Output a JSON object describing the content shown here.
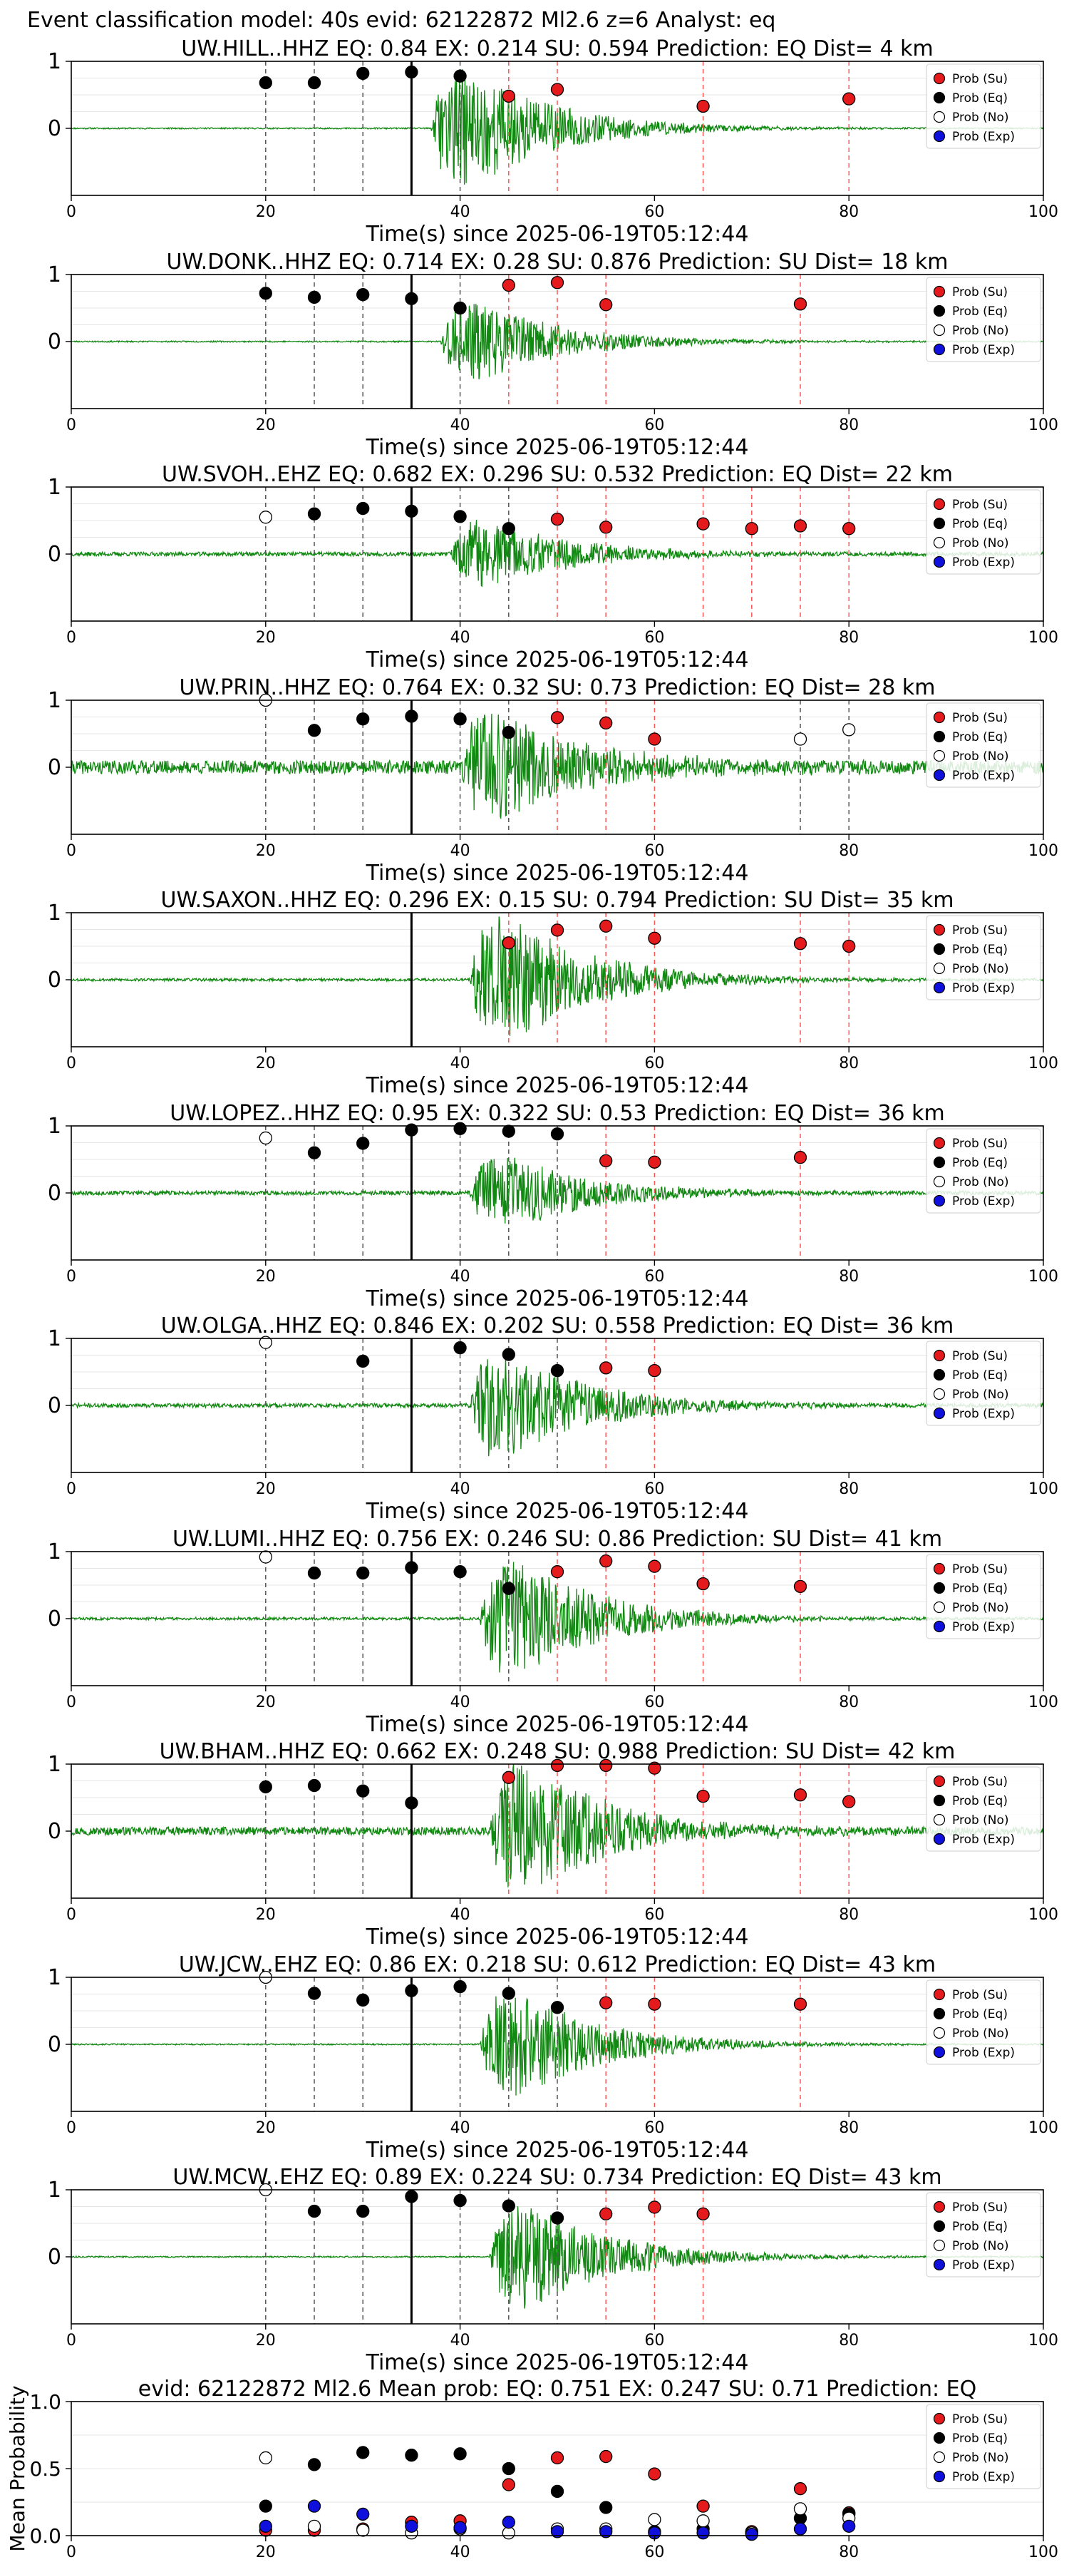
{
  "suptitle": "Event classification model: 40s evid: 62122872 Ml2.6 z=6 Analyst: eq",
  "xlabel": "Time(s) since 2025-06-19T05:12:44",
  "legend": [
    "Prob (Su)",
    "Prob (Eq)",
    "Prob (No)",
    "Prob (Exp)"
  ],
  "colors": {
    "su": "#e41a1c",
    "eq": "#000000",
    "no": "#ffffff",
    "exp": "#1010dd",
    "trace": "#118811"
  },
  "chart_data": [
    {
      "type": "scatter",
      "title": "UW.HILL..HHZ   EQ: 0.84  EX: 0.214  SU: 0.594   Prediction: EQ    Dist= 4 km",
      "xlim": [
        0,
        100
      ],
      "ylim": [
        -1,
        1
      ],
      "xticks": [
        0,
        20,
        40,
        60,
        80,
        100
      ],
      "yticks": [
        1,
        0
      ],
      "arrival": 35,
      "onset": 37,
      "amp": 0.9,
      "noise": 0.01,
      "seed": 11,
      "series": [
        {
          "name": "Prob (Su)",
          "x": [
            45,
            50,
            65,
            80
          ],
          "y": [
            0.48,
            0.58,
            0.33,
            0.44
          ]
        },
        {
          "name": "Prob (Eq)",
          "x": [
            20,
            25,
            30,
            35,
            40
          ],
          "y": [
            0.68,
            0.68,
            0.82,
            0.84,
            0.78
          ]
        }
      ]
    },
    {
      "type": "scatter",
      "title": "UW.DONK..HHZ   EQ: 0.714  EX: 0.28  SU: 0.876   Prediction: SU    Dist= 18 km",
      "xlim": [
        0,
        100
      ],
      "ylim": [
        -1,
        1
      ],
      "xticks": [
        0,
        20,
        40,
        60,
        80,
        100
      ],
      "yticks": [
        1,
        0
      ],
      "arrival": 35,
      "onset": 38,
      "amp": 0.6,
      "noise": 0.01,
      "seed": 23,
      "series": [
        {
          "name": "Prob (Su)",
          "x": [
            45,
            50,
            55,
            75
          ],
          "y": [
            0.84,
            0.88,
            0.55,
            0.56
          ]
        },
        {
          "name": "Prob (Eq)",
          "x": [
            20,
            25,
            30,
            35,
            40
          ],
          "y": [
            0.72,
            0.66,
            0.7,
            0.64,
            0.5
          ]
        }
      ]
    },
    {
      "type": "scatter",
      "title": "UW.SVOH..EHZ   EQ: 0.682  EX: 0.296  SU: 0.532   Prediction: EQ    Dist= 22 km",
      "xlim": [
        0,
        100
      ],
      "ylim": [
        -1,
        1
      ],
      "xticks": [
        0,
        20,
        40,
        60,
        80,
        100
      ],
      "yticks": [
        1,
        0
      ],
      "arrival": 35,
      "onset": 39,
      "amp": 0.5,
      "noise": 0.03,
      "seed": 37,
      "series": [
        {
          "name": "Prob (Su)",
          "x": [
            50,
            55,
            65,
            70,
            75,
            80
          ],
          "y": [
            0.52,
            0.4,
            0.45,
            0.38,
            0.42,
            0.38
          ]
        },
        {
          "name": "Prob (Eq)",
          "x": [
            25,
            30,
            35,
            40,
            45
          ],
          "y": [
            0.6,
            0.68,
            0.64,
            0.56,
            0.38
          ]
        },
        {
          "name": "Prob (No)",
          "x": [
            20
          ],
          "y": [
            0.55
          ]
        }
      ]
    },
    {
      "type": "scatter",
      "title": "UW.PRIN..HHZ   EQ: 0.764  EX: 0.32  SU: 0.73   Prediction: EQ    Dist= 28 km",
      "xlim": [
        0,
        100
      ],
      "ylim": [
        -1,
        1
      ],
      "xticks": [
        0,
        20,
        40,
        60,
        80,
        100
      ],
      "yticks": [
        1,
        0
      ],
      "arrival": 35,
      "onset": 40,
      "amp": 0.8,
      "noise": 0.1,
      "seed": 41,
      "series": [
        {
          "name": "Prob (Su)",
          "x": [
            50,
            55,
            60
          ],
          "y": [
            0.74,
            0.66,
            0.42
          ]
        },
        {
          "name": "Prob (Eq)",
          "x": [
            25,
            30,
            35,
            40,
            45
          ],
          "y": [
            0.55,
            0.72,
            0.76,
            0.72,
            0.52
          ]
        },
        {
          "name": "Prob (No)",
          "x": [
            20,
            75,
            80
          ],
          "y": [
            1.0,
            0.42,
            0.56
          ]
        }
      ]
    },
    {
      "type": "scatter",
      "title": "UW.SAXON..HHZ   EQ: 0.296  EX: 0.15  SU: 0.794   Prediction: SU    Dist= 35 km",
      "xlim": [
        0,
        100
      ],
      "ylim": [
        -1,
        1
      ],
      "xticks": [
        0,
        20,
        40,
        60,
        80,
        100
      ],
      "yticks": [
        1,
        0
      ],
      "arrival": 35,
      "onset": 41,
      "amp": 1.0,
      "noise": 0.02,
      "seed": 53,
      "series": [
        {
          "name": "Prob (Su)",
          "x": [
            45,
            50,
            55,
            60,
            75,
            80
          ],
          "y": [
            0.55,
            0.74,
            0.8,
            0.62,
            0.54,
            0.5
          ]
        }
      ]
    },
    {
      "type": "scatter",
      "title": "UW.LOPEZ..HHZ   EQ: 0.95  EX: 0.322  SU: 0.53   Prediction: EQ    Dist= 36 km",
      "xlim": [
        0,
        100
      ],
      "ylim": [
        -1,
        1
      ],
      "xticks": [
        0,
        20,
        40,
        60,
        80,
        100
      ],
      "yticks": [
        1,
        0
      ],
      "arrival": 35,
      "onset": 41,
      "amp": 0.55,
      "noise": 0.03,
      "seed": 67,
      "series": [
        {
          "name": "Prob (Su)",
          "x": [
            55,
            60,
            75
          ],
          "y": [
            0.48,
            0.46,
            0.53
          ]
        },
        {
          "name": "Prob (Eq)",
          "x": [
            25,
            30,
            35,
            40,
            45,
            50
          ],
          "y": [
            0.6,
            0.74,
            0.94,
            0.96,
            0.92,
            0.88
          ]
        },
        {
          "name": "Prob (No)",
          "x": [
            20
          ],
          "y": [
            0.82
          ]
        }
      ]
    },
    {
      "type": "scatter",
      "title": "UW.OLGA..HHZ   EQ: 0.846  EX: 0.202  SU: 0.558   Prediction: EQ    Dist= 36 km",
      "xlim": [
        0,
        100
      ],
      "ylim": [
        -1,
        1
      ],
      "xticks": [
        0,
        20,
        40,
        60,
        80,
        100
      ],
      "yticks": [
        1,
        0
      ],
      "arrival": 35,
      "onset": 41,
      "amp": 0.8,
      "noise": 0.03,
      "seed": 71,
      "series": [
        {
          "name": "Prob (Su)",
          "x": [
            55,
            60
          ],
          "y": [
            0.56,
            0.52
          ]
        },
        {
          "name": "Prob (Eq)",
          "x": [
            30,
            40,
            45,
            50
          ],
          "y": [
            0.66,
            0.86,
            0.76,
            0.52
          ]
        },
        {
          "name": "Prob (No)",
          "x": [
            20
          ],
          "y": [
            0.94
          ]
        }
      ]
    },
    {
      "type": "scatter",
      "title": "UW.LUMI..HHZ   EQ: 0.756  EX: 0.246  SU: 0.86   Prediction: SU    Dist= 41 km",
      "xlim": [
        0,
        100
      ],
      "ylim": [
        -1,
        1
      ],
      "xticks": [
        0,
        20,
        40,
        60,
        80,
        100
      ],
      "yticks": [
        1,
        0
      ],
      "arrival": 35,
      "onset": 42,
      "amp": 0.9,
      "noise": 0.02,
      "seed": 83,
      "series": [
        {
          "name": "Prob (Su)",
          "x": [
            50,
            55,
            60,
            65,
            75
          ],
          "y": [
            0.7,
            0.86,
            0.78,
            0.52,
            0.48
          ]
        },
        {
          "name": "Prob (Eq)",
          "x": [
            25,
            30,
            35,
            40,
            45
          ],
          "y": [
            0.68,
            0.68,
            0.76,
            0.7,
            0.45
          ]
        },
        {
          "name": "Prob (No)",
          "x": [
            20
          ],
          "y": [
            0.92
          ]
        }
      ]
    },
    {
      "type": "scatter",
      "title": "UW.BHAM..HHZ   EQ: 0.662  EX: 0.248  SU: 0.988   Prediction: SU    Dist= 42 km",
      "xlim": [
        0,
        100
      ],
      "ylim": [
        -1,
        1
      ],
      "xticks": [
        0,
        20,
        40,
        60,
        80,
        100
      ],
      "yticks": [
        1,
        0
      ],
      "arrival": 35,
      "onset": 43,
      "amp": 1.0,
      "noise": 0.06,
      "seed": 97,
      "series": [
        {
          "name": "Prob (Su)",
          "x": [
            45,
            50,
            55,
            60,
            65,
            75,
            80
          ],
          "y": [
            0.8,
            0.98,
            0.98,
            0.94,
            0.52,
            0.54,
            0.44
          ]
        },
        {
          "name": "Prob (Eq)",
          "x": [
            20,
            25,
            30,
            35
          ],
          "y": [
            0.66,
            0.68,
            0.6,
            0.42
          ]
        }
      ]
    },
    {
      "type": "scatter",
      "title": "UW.JCW..EHZ   EQ: 0.86  EX: 0.218  SU: 0.612   Prediction: EQ    Dist= 43 km",
      "xlim": [
        0,
        100
      ],
      "ylim": [
        -1,
        1
      ],
      "xticks": [
        0,
        20,
        40,
        60,
        80,
        100
      ],
      "yticks": [
        1,
        0
      ],
      "arrival": 35,
      "onset": 42,
      "amp": 0.8,
      "noise": 0.01,
      "seed": 101,
      "series": [
        {
          "name": "Prob (Su)",
          "x": [
            55,
            60,
            75
          ],
          "y": [
            0.62,
            0.6,
            0.6
          ]
        },
        {
          "name": "Prob (Eq)",
          "x": [
            25,
            30,
            35,
            40,
            45,
            50
          ],
          "y": [
            0.76,
            0.66,
            0.8,
            0.86,
            0.76,
            0.55
          ]
        },
        {
          "name": "Prob (No)",
          "x": [
            20
          ],
          "y": [
            1.0
          ]
        }
      ]
    },
    {
      "type": "scatter",
      "title": "UW.MCW..EHZ   EQ: 0.89  EX: 0.224  SU: 0.734   Prediction: EQ    Dist= 43 km",
      "xlim": [
        0,
        100
      ],
      "ylim": [
        -1,
        1
      ],
      "xticks": [
        0,
        20,
        40,
        60,
        80,
        100
      ],
      "yticks": [
        1,
        0
      ],
      "arrival": 35,
      "onset": 43,
      "amp": 0.8,
      "noise": 0.01,
      "seed": 113,
      "series": [
        {
          "name": "Prob (Su)",
          "x": [
            55,
            60,
            65
          ],
          "y": [
            0.64,
            0.74,
            0.64
          ]
        },
        {
          "name": "Prob (Eq)",
          "x": [
            25,
            30,
            35,
            40,
            45,
            50
          ],
          "y": [
            0.68,
            0.68,
            0.9,
            0.84,
            0.76,
            0.58
          ]
        },
        {
          "name": "Prob (No)",
          "x": [
            20
          ],
          "y": [
            1.0
          ]
        }
      ]
    },
    {
      "type": "scatter",
      "title": "evid: 62122872  Ml2.6   Mean prob:   EQ: 0.751  EX: 0.247  SU: 0.71    Prediction: EQ",
      "ylabel": "Mean Probability",
      "xlim": [
        0,
        100
      ],
      "ylim": [
        0,
        1
      ],
      "xticks": [
        0,
        20,
        40,
        60,
        80,
        100
      ],
      "yticks": [
        1.0,
        0.5,
        0.0
      ],
      "series": [
        {
          "name": "Prob (Su)",
          "x": [
            20,
            25,
            30,
            35,
            40,
            45,
            50,
            55,
            60,
            65,
            70,
            75,
            80
          ],
          "y": [
            0.04,
            0.04,
            0.05,
            0.1,
            0.11,
            0.38,
            0.58,
            0.59,
            0.46,
            0.22,
            0.03,
            0.35,
            0.17
          ]
        },
        {
          "name": "Prob (Eq)",
          "x": [
            20,
            25,
            30,
            35,
            40,
            45,
            50,
            55,
            60,
            65,
            70,
            75,
            80
          ],
          "y": [
            0.22,
            0.53,
            0.62,
            0.6,
            0.61,
            0.5,
            0.33,
            0.21,
            0.03,
            0.05,
            0.02,
            0.13,
            0.16
          ]
        },
        {
          "name": "Prob (No)",
          "x": [
            20,
            25,
            30,
            35,
            40,
            45,
            50,
            55,
            60,
            65,
            70,
            75,
            80
          ],
          "y": [
            0.58,
            0.07,
            0.04,
            0.02,
            0.05,
            0.02,
            0.05,
            0.05,
            0.12,
            0.11,
            0.02,
            0.2,
            0.13
          ]
        },
        {
          "name": "Prob (Exp)",
          "x": [
            20,
            25,
            30,
            35,
            40,
            45,
            50,
            55,
            60,
            65,
            70,
            75,
            80
          ],
          "y": [
            0.07,
            0.22,
            0.16,
            0.07,
            0.06,
            0.1,
            0.03,
            0.03,
            0.02,
            0.02,
            0.01,
            0.05,
            0.07
          ]
        }
      ]
    }
  ]
}
